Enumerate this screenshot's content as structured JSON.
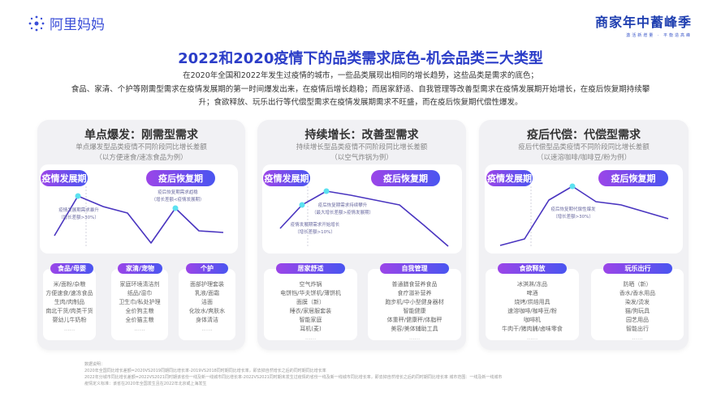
{
  "header": {
    "logo_left": "阿里妈妈",
    "logo_right_title": "商家年中蓄峰季",
    "logo_right_sub": "激活新增量 · 平衡造高峰"
  },
  "title": "2022和2020疫情下的品类需求底色-机会品类三大类型",
  "description": [
    "在2020年全国和2022年发生过疫情的城市，一些品类展现出相同的增长趋势，这些品类是需求的底色；",
    "食品、家清、个护等刚需型需求在疫情发展期的第一时间爆发出来，在疫情后增长趋稳；而居家舒适、自我管理等改善型需求在疫情发展期开始增长，在疫后恢复期持续攀",
    "升；食欲释放、玩乐出行等代偿型需求在疫情发展期需求不旺盛，而在疫后恢复期代偿性爆发。"
  ],
  "colors": {
    "accent": "#2b3dc8",
    "line": "#4a35c0",
    "point": "#5ce1f0",
    "pill_start": "#9b45e8",
    "pill_end": "#4a55f0"
  },
  "phase_labels": {
    "outbreak": "疫情发展期",
    "recovery": "疫后恢复期"
  },
  "panels": [
    {
      "title": "单点爆发：刚需型需求",
      "subtitle": "单点爆发型品类疫情不同阶段同比增长差额",
      "example": "（以方便速食/速冻食品为例）",
      "notes": [
        {
          "l1": "疫情发展期需求暴升",
          "l2": "（增长差额>30%）"
        },
        {
          "l1": "疫后恢复期需求趋稳",
          "l2": "（增长差额<疫情发展期）"
        }
      ],
      "cards": [
        {
          "label": "食品/母婴",
          "items": [
            "米/面粉/杂粮",
            "方便速食/速冻食品",
            "生肉/肉制品",
            "南北干货/肉类干货",
            "婴幼儿牛奶粉",
            "......"
          ]
        },
        {
          "label": "家清/宠物",
          "items": [
            "家庭环境清洁剂",
            "纸品/湿巾",
            "卫生巾/私处护理",
            "全价狗主粮",
            "全价猫主粮",
            "......"
          ]
        },
        {
          "label": "个护",
          "items": [
            "面部护理套装",
            "乳液/面霜",
            "洁面",
            "化妆水/爽肤水",
            "身体清洁",
            "......"
          ]
        }
      ]
    },
    {
      "title": "持续增长：改善型需求",
      "subtitle": "持续增长型品类疫情不同阶段同比增长差额",
      "example": "（以空气炸锅为例）",
      "notes": [
        {
          "l1": "疫后恢复期需求持续攀升",
          "l2": "（最大增长差额>疫情发展期）"
        },
        {
          "l1": "疫情发展期需求开始增长",
          "l2": "（增长差额>10%）"
        }
      ],
      "cards": [
        {
          "label": "居家舒适",
          "items": [
            "空气炸锅",
            "电饼铛/华夫饼机/薄饼机",
            "面膜（新）",
            "睡衣/家居服套装",
            "智能家庭",
            "耳机(麦)",
            "......"
          ]
        },
        {
          "label": "自我管理",
          "items": [
            "普通膳食营养食品",
            "食疗滋补营养",
            "跑步机/中小型健身器材",
            "智能健康",
            "体重秤/健康秤/体脂秤",
            "美容/美体辅助工具",
            "......"
          ]
        }
      ]
    },
    {
      "title": "疫后代偿：代偿型需求",
      "subtitle": "疫后代偿型品类疫情不同阶段同比增长差额",
      "example": "（以速溶咖啡/咖啡豆/粉为例）",
      "notes": [
        {
          "l1": "疫后恢复期代偿性爆发",
          "l2": "（增长差额>30%）"
        }
      ],
      "cards": [
        {
          "label": "食欲释放",
          "items": [
            "冰淇淋/冻品",
            "啤酒",
            "烧烤/烘焙用具",
            "速溶咖啡/咖啡豆/粉",
            "咖啡机",
            "牛肉干/猪肉脯/卤味零食",
            "......"
          ]
        },
        {
          "label": "玩乐出行",
          "items": [
            "防晒（新）",
            "香水/香水用品",
            "染发/烫发",
            "猫/狗玩具",
            "园艺用品",
            "智能出行",
            "......"
          ]
        }
      ]
    }
  ],
  "footnote": [
    "数据说明：",
    "2020年全国同比增长差额=2020VS2019同期同比增长率-2019VS2018同时期同比增长率，即去掉自然增长之后的同时期同比增长率",
    "2022年分城市同比增长差额=2022VS2021同时期该省份一线及新一线城市同比增长率-2022VS2021同时期未发生过疫情的省份一线及新一线城市同比增长率，即去掉自然增长之后的同时期同比增长率 城市范围：一线及新一线城市",
    "疫情定义标准：该省在2020年全国发生且在2022年北京或上海发生"
  ]
}
